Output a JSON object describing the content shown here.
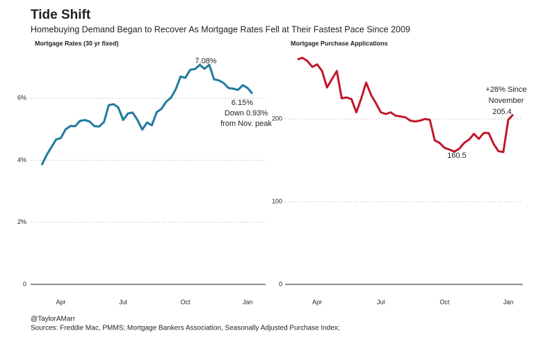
{
  "title": "Tide Shift",
  "subtitle": "Homebuying Demand Began to Recover As Mortgage Rates Fell at Their Fastest Pace Since 2009",
  "footer": [
    "@TaylorAMarr",
    "Sources: Freddie Mac, PMMS; Mortgage Bankers Association, Seasonally Adjusted Purchase Index;"
  ],
  "chart_data": [
    {
      "type": "line",
      "title": "Mortgage Rates (30 yr fixed)",
      "color": "#1f7a9e",
      "grid": true,
      "categories": [
        null,
        null,
        null,
        null,
        "Apr",
        null,
        null,
        null,
        null,
        null,
        null,
        null,
        null,
        null,
        null,
        null,
        null,
        "Jul",
        null,
        null,
        null,
        null,
        null,
        null,
        null,
        null,
        null,
        null,
        null,
        null,
        "Oct",
        null,
        null,
        null,
        null,
        null,
        null,
        null,
        null,
        null,
        null,
        null,
        null,
        "Jan",
        null
      ],
      "values": [
        3.85,
        4.16,
        4.42,
        4.67,
        4.72,
        5.0,
        5.11,
        5.1,
        5.27,
        5.3,
        5.25,
        5.1,
        5.09,
        5.23,
        5.78,
        5.81,
        5.7,
        5.3,
        5.51,
        5.54,
        5.3,
        4.99,
        5.22,
        5.13,
        5.55,
        5.66,
        5.89,
        6.02,
        6.29,
        6.7,
        6.66,
        6.92,
        6.94,
        7.08,
        6.95,
        7.08,
        6.61,
        6.58,
        6.49,
        6.33,
        6.31,
        6.27,
        6.42,
        6.33,
        6.15
      ],
      "ylim": [
        0,
        7.6
      ],
      "yticks": [
        0,
        {
          "value": 2,
          "label": "2%"
        },
        {
          "value": 4,
          "label": "4%"
        },
        {
          "value": 6,
          "label": "6%"
        }
      ],
      "annotations": [
        "7.08%",
        "6.15%",
        "Down 0.93%",
        "from Nov. peak"
      ]
    },
    {
      "type": "line",
      "title": "Mortgage Purchase Applications",
      "color": "#c0182b",
      "grid": true,
      "categories": [
        null,
        null,
        null,
        null,
        "Apr",
        null,
        null,
        null,
        null,
        null,
        null,
        null,
        null,
        null,
        null,
        null,
        null,
        "Jul",
        null,
        null,
        null,
        null,
        null,
        null,
        null,
        null,
        null,
        null,
        null,
        null,
        "Oct",
        null,
        null,
        null,
        null,
        null,
        null,
        null,
        null,
        null,
        null,
        null,
        null,
        "Jan",
        null
      ],
      "values": [
        272,
        274,
        270,
        263,
        266,
        258,
        238,
        248,
        258,
        225,
        226,
        224,
        208,
        225,
        244,
        229,
        219,
        208,
        206,
        208,
        204,
        203,
        202,
        198,
        197,
        198,
        200,
        199,
        174,
        171,
        165,
        163,
        160.5,
        164,
        171,
        175,
        182,
        176,
        183,
        183,
        170,
        161,
        160,
        199,
        205.4
      ],
      "ylim": [
        0,
        285
      ],
      "yticks": [
        0,
        100,
        200
      ],
      "annotations": [
        "+28% Since",
        "November",
        "205.4",
        "160.5"
      ]
    }
  ]
}
